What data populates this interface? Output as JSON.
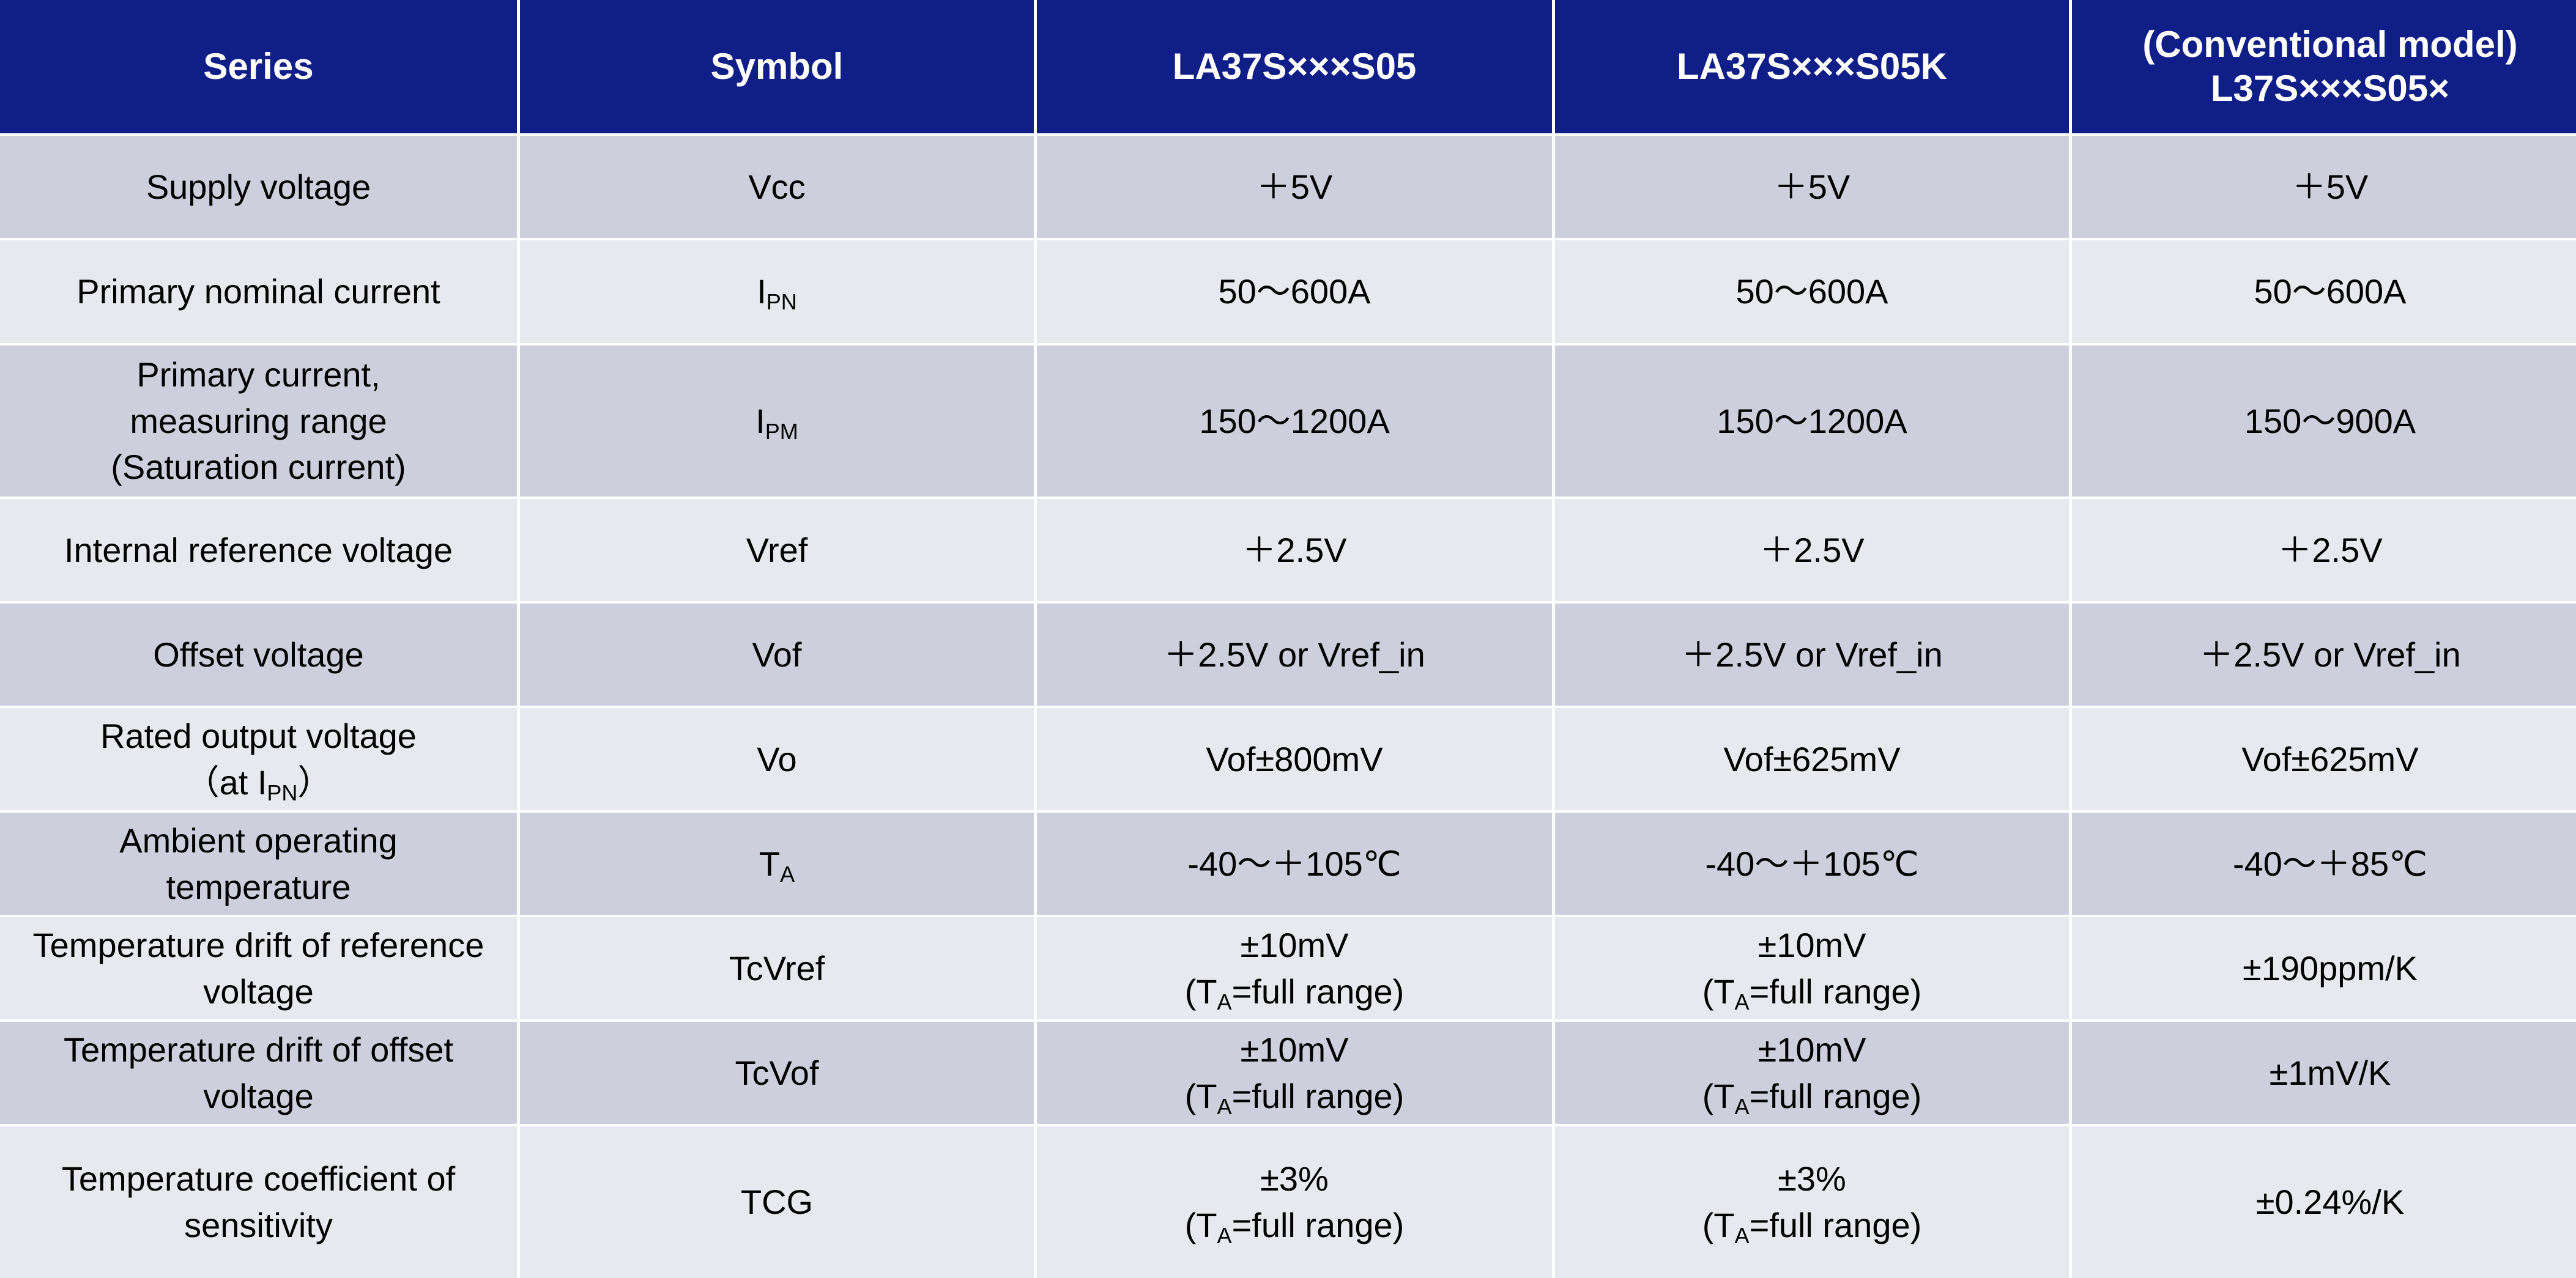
{
  "headers": {
    "series": "Series",
    "symbol": "Symbol",
    "col1": "LA37S×××S05",
    "col2": "LA37S×××S05K",
    "col3_line1": "(Conventional model)",
    "col3_line2": "L37S×××S05×"
  },
  "rows": [
    {
      "label": "Supply voltage",
      "symbol": "Vcc",
      "v1": "＋5V",
      "v2": "＋5V",
      "v3": "＋5V"
    },
    {
      "label": "Primary nominal current",
      "symbol_main": "I",
      "symbol_sub": "PN",
      "v1": "50～600A",
      "v2": "50～600A",
      "v3": "50～600A"
    },
    {
      "label_l1": "Primary current,",
      "label_l2": "measuring range",
      "label_l3": "(Saturation current)",
      "symbol_main": "I",
      "symbol_sub": "PM",
      "v1": "150～1200A",
      "v2": "150～1200A",
      "v3": "150～900A"
    },
    {
      "label": "Internal reference voltage",
      "symbol": "Vref",
      "v1": "＋2.5V",
      "v2": "＋2.5V",
      "v3": "＋2.5V"
    },
    {
      "label": "Offset voltage",
      "symbol": "Vof",
      "v1": "＋2.5V or Vref_in",
      "v2": "＋2.5V or Vref_in",
      "v3": "＋2.5V or Vref_in"
    },
    {
      "label_l1": "Rated output voltage",
      "label_l2a": "（at I",
      "label_l2sub": "PN",
      "label_l2b": "）",
      "symbol": "Vo",
      "v1": "Vof±800mV",
      "v2": "Vof±625mV",
      "v3": "Vof±625mV"
    },
    {
      "label_l1": "Ambient operating",
      "label_l2": "temperature",
      "symbol_main": "T",
      "symbol_sub": "A",
      "v1": "-40～＋105℃",
      "v2": "-40～＋105℃",
      "v3": "-40～＋85℃"
    },
    {
      "label_l1": "Temperature drift of reference",
      "label_l2": "voltage",
      "symbol": "TcVref",
      "v1": "±10mV",
      "v2": "±10mV",
      "v3": "±190ppm/K"
    },
    {
      "label_l1": "Temperature drift of offset",
      "label_l2": "voltage",
      "symbol": "TcVof",
      "v1": "±10mV",
      "v2": "±10mV",
      "v3": "±1mV/K"
    },
    {
      "label_l1": "Temperature coefficient of",
      "label_l2": "sensitivity",
      "symbol": "TCG",
      "v1": "±3%",
      "v2": "±3%",
      "v3": "±0.24%/K"
    }
  ],
  "note": {
    "open": "(T",
    "sub": "A",
    "rest": "=full range)"
  }
}
